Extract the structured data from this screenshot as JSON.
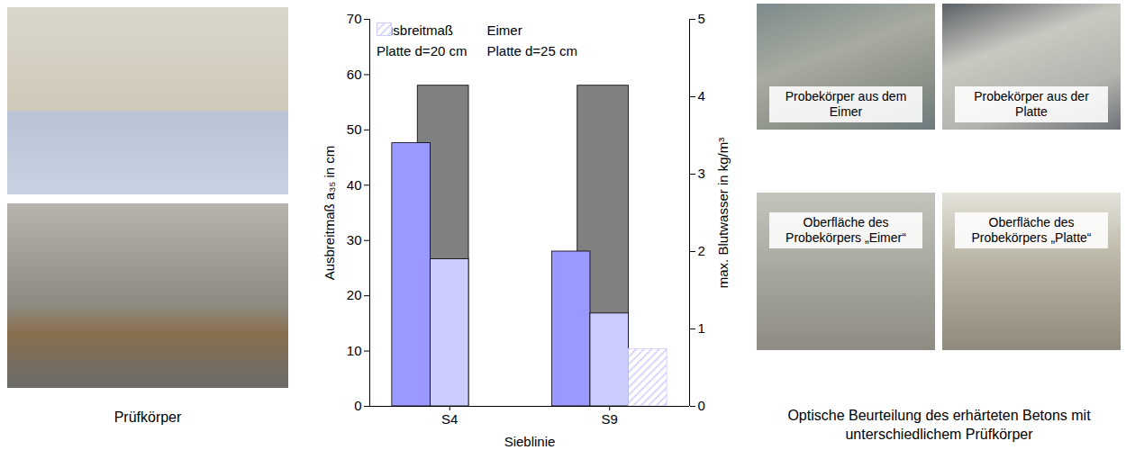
{
  "chart_data": {
    "type": "bar",
    "categories": [
      "S4",
      "S9"
    ],
    "x_label": "Sieblinie",
    "y_label": "Ausbreitmaß a₃₅ in cm",
    "y2_label": "max. Blutwasser in kg/m³",
    "ylim": [
      0,
      70
    ],
    "yticks": [
      0,
      10,
      20,
      30,
      40,
      50,
      60,
      70
    ],
    "y2lim": [
      0,
      5
    ],
    "y2ticks": [
      0,
      1,
      2,
      3,
      4,
      5
    ],
    "grid": false,
    "legend": "top",
    "series": [
      {
        "name": "Ausbreitmaß",
        "color": "#808080",
        "values": [
          58,
          58
        ]
      },
      {
        "name": "Eimer",
        "color": "#9999ff",
        "axis": "y2",
        "values": [
          3.4,
          2.0
        ]
      },
      {
        "name": "Platte d=20 cm",
        "color": "#ccccff",
        "axis": "y2",
        "values": [
          1.9,
          1.2
        ]
      },
      {
        "name": "Platte d=25 cm",
        "color": "#ccccff",
        "axis": "y2",
        "line_style": "hatched",
        "values": [
          null,
          0.74
        ]
      }
    ]
  },
  "left_panel": {
    "caption": "Prüfkörper"
  },
  "right_panel": {
    "labels": [
      "Probekörper aus dem Eimer",
      "Probekörper aus der Platte",
      "Oberfläche des Probekörpers „Eimer“",
      "Oberfläche des Probekörpers „Platte“"
    ],
    "caption": "Optische Beurteilung des erhärteten Betons mit unterschiedlichem Prüfkörper"
  }
}
